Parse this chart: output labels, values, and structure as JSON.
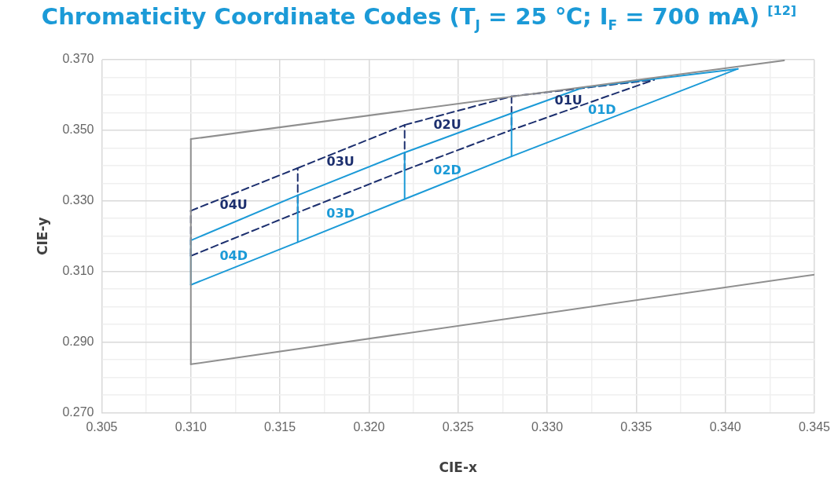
{
  "chart_data": {
    "type": "line",
    "title": "Chromaticity Coordinate Codes (T$_{J}$ = 25 ℃; I$_{F}$ = 700 mA) $^{[12]}$",
    "xlabel": "CIE-x",
    "ylabel": "CIE-y",
    "xlim": [
      0.305,
      0.345
    ],
    "ylim": [
      0.27,
      0.37
    ],
    "xticks": [
      0.305,
      {
        "value": 0.3075,
        "label": null
      },
      {
        "value": 0.31,
        "label": "0.310"
      },
      {
        "value": 0.3125,
        "label": null
      },
      0.315,
      {
        "value": 0.3175,
        "label": null
      },
      {
        "value": 0.32,
        "label": "0.320"
      },
      {
        "value": 0.3225,
        "label": null
      },
      0.325,
      {
        "value": 0.3275,
        "label": null
      },
      {
        "value": 0.33,
        "label": "0.330"
      },
      {
        "value": 0.3325,
        "label": null
      },
      0.335,
      {
        "value": 0.3375,
        "label": null
      },
      {
        "value": 0.34,
        "label": "0.340"
      },
      {
        "value": 0.3425,
        "label": null
      },
      0.345
    ],
    "yticks": [
      {
        "value": 0.27,
        "label": "0.270"
      },
      {
        "value": 0.275,
        "label": null
      },
      {
        "value": 0.28,
        "label": null
      },
      {
        "value": 0.285,
        "label": null
      },
      {
        "value": 0.29,
        "label": "0.290"
      },
      {
        "value": 0.295,
        "label": null
      },
      {
        "value": 0.3,
        "label": null
      },
      {
        "value": 0.305,
        "label": null
      },
      {
        "value": 0.31,
        "label": "0.310"
      },
      {
        "value": 0.315,
        "label": null
      },
      {
        "value": 0.32,
        "label": null
      },
      {
        "value": 0.325,
        "label": null
      },
      {
        "value": 0.33,
        "label": "0.330"
      },
      {
        "value": 0.335,
        "label": null
      },
      {
        "value": 0.34,
        "label": null
      },
      {
        "value": 0.345,
        "label": null
      },
      {
        "value": 0.35,
        "label": "0.350"
      },
      {
        "value": 0.355,
        "label": null
      },
      {
        "value": 0.36,
        "label": null
      },
      {
        "value": 0.365,
        "label": null
      },
      {
        "value": 0.37,
        "label": "0.370"
      }
    ],
    "grid": true,
    "legend": false,
    "marker": "none",
    "series": [
      {
        "color": "#8f8f8f",
        "line_style": "solid",
        "x": [
          0.31,
          0.345
        ],
        "values": [
          0.2837,
          0.3091
        ]
      },
      {
        "color": "#8f8f8f",
        "line_style": "solid",
        "x": [
          0.31,
          0.31
        ],
        "values": [
          0.2837,
          0.3475
        ]
      },
      {
        "color": "#8f8f8f",
        "line_style": "solid",
        "x": [
          0.31,
          0.3433
        ],
        "values": [
          0.3475,
          0.3698
        ]
      },
      {
        "color": "#1b9ad7",
        "line_style": "solid",
        "x": [
          0.31,
          0.316,
          0.322,
          0.328,
          0.332,
          0.3407
        ],
        "values": [
          0.3188,
          0.3316,
          0.3437,
          0.3548,
          0.3621,
          0.3674
        ]
      },
      {
        "color": "#1b9ad7",
        "line_style": "solid",
        "x": [
          0.31,
          0.31
        ],
        "values": [
          0.3062,
          0.3188
        ]
      },
      {
        "name": "04D",
        "color": "#1b9ad7",
        "line_style": "solid",
        "x": [
          0.31,
          0.316,
          0.316
        ],
        "values": [
          0.3062,
          0.3183,
          0.3316
        ]
      },
      {
        "name": "03D",
        "color": "#1b9ad7",
        "line_style": "solid",
        "x": [
          0.316,
          0.322,
          0.322
        ],
        "values": [
          0.3183,
          0.3305,
          0.3437
        ]
      },
      {
        "name": "02D",
        "color": "#1b9ad7",
        "line_style": "solid",
        "x": [
          0.322,
          0.328,
          0.328
        ],
        "values": [
          0.3305,
          0.3426,
          0.3548
        ]
      },
      {
        "name": "01D",
        "color": "#1b9ad7",
        "line_style": "solid",
        "x": [
          0.328,
          0.3407
        ],
        "values": [
          0.3426,
          0.3674
        ]
      },
      {
        "color": "#1c2f6e",
        "line_style": "dashed",
        "x": [
          0.31,
          0.316,
          0.322,
          0.328,
          0.336
        ],
        "values": [
          0.3144,
          0.3267,
          0.3387,
          0.3501,
          0.3643
        ]
      },
      {
        "color": "#1c2f6e",
        "line_style": "dashed",
        "x": [
          0.31,
          0.31
        ],
        "values": [
          0.3144,
          0.3272
        ]
      },
      {
        "name": "04U",
        "color": "#1c2f6e",
        "line_style": "dashed",
        "x": [
          0.31,
          0.316,
          0.316
        ],
        "values": [
          0.3272,
          0.3393,
          0.3267
        ]
      },
      {
        "name": "03U",
        "color": "#1c2f6e",
        "line_style": "dashed",
        "x": [
          0.316,
          0.322,
          0.322
        ],
        "values": [
          0.3393,
          0.3515,
          0.3387
        ]
      },
      {
        "name": "02U",
        "color": "#1c2f6e",
        "line_style": "dashed",
        "x": [
          0.322,
          0.328,
          0.328
        ],
        "values": [
          0.3515,
          0.3596,
          0.3501
        ]
      },
      {
        "name": "01U",
        "color": "#1c2f6e",
        "line_style": "dashed",
        "x": [
          0.328,
          0.336
        ],
        "values": [
          0.3596,
          0.3643
        ]
      }
    ]
  }
}
